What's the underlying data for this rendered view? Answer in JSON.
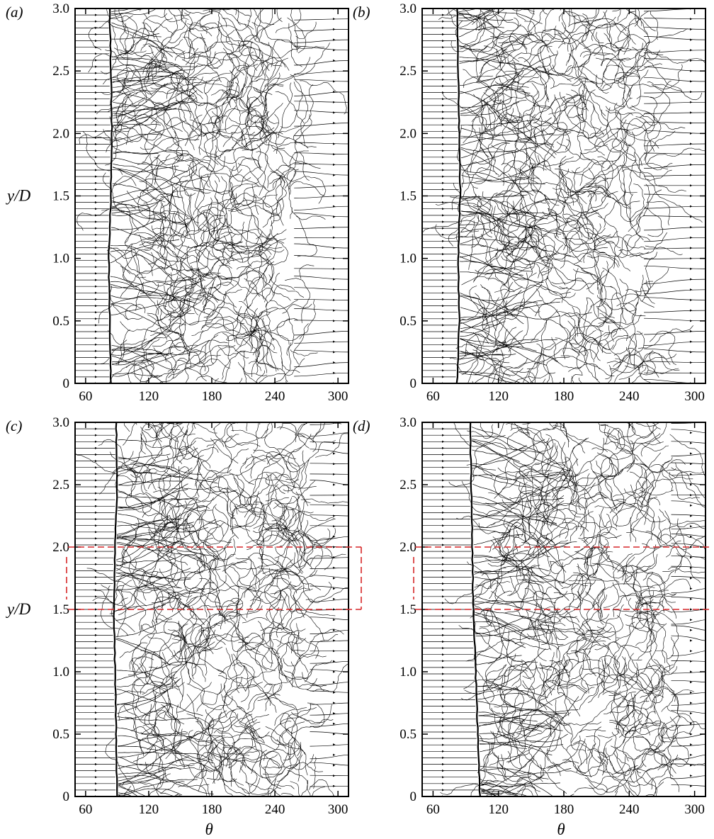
{
  "figure": {
    "axes": {
      "xlabel": "θ",
      "ylabel": "y/D",
      "x_ticks": [
        "60",
        "120",
        "180",
        "240",
        "300"
      ],
      "y_ticks": [
        "0",
        "0.5",
        "1.0",
        "1.5",
        "2.0",
        "2.5",
        "3.0"
      ]
    },
    "line_color": "#000000",
    "highlight_color": "#d62728"
  },
  "chart_data": [
    {
      "type": "scatter",
      "label": "(a)",
      "xlabel": "",
      "ylabel": "y/D",
      "xlim": [
        50,
        310
      ],
      "ylim": [
        0,
        3.0
      ],
      "x_ticks": [
        60,
        120,
        180,
        240,
        300
      ],
      "y_ticks": [
        0,
        0.5,
        1.0,
        1.5,
        2.0,
        2.5,
        3.0
      ],
      "separation_line": [
        [
          0,
          84
        ],
        [
          0.5,
          83
        ],
        [
          1.0,
          82
        ],
        [
          1.5,
          84
        ],
        [
          2.0,
          85
        ],
        [
          2.5,
          84
        ],
        [
          3.0,
          83
        ]
      ],
      "turbulent_region": [
        95,
        265
      ],
      "grid": false,
      "highlight_band": null
    },
    {
      "type": "scatter",
      "label": "(b)",
      "xlabel": "",
      "ylabel": "",
      "xlim": [
        50,
        310
      ],
      "ylim": [
        0,
        3.0
      ],
      "x_ticks": [
        60,
        120,
        180,
        240,
        300
      ],
      "y_ticks": [
        0,
        0.5,
        1.0,
        1.5,
        2.0,
        2.5,
        3.0
      ],
      "separation_line": [
        [
          0,
          82
        ],
        [
          0.5,
          84
        ],
        [
          1.0,
          83
        ],
        [
          1.5,
          85
        ],
        [
          2.0,
          84
        ],
        [
          2.5,
          83
        ],
        [
          3.0,
          82
        ]
      ],
      "turbulent_region": [
        95,
        260
      ],
      "grid": false,
      "highlight_band": null
    },
    {
      "type": "scatter",
      "label": "(c)",
      "xlabel": "θ",
      "ylabel": "y/D",
      "xlim": [
        50,
        310
      ],
      "ylim": [
        0,
        3.0
      ],
      "x_ticks": [
        60,
        120,
        180,
        240,
        300
      ],
      "y_ticks": [
        0,
        0.5,
        1.0,
        1.5,
        2.0,
        2.5,
        3.0
      ],
      "separation_line": [
        [
          0,
          90
        ],
        [
          0.5,
          89
        ],
        [
          1.0,
          88
        ],
        [
          1.5,
          87
        ],
        [
          2.0,
          88
        ],
        [
          2.5,
          90
        ],
        [
          3.0,
          89
        ]
      ],
      "turbulent_region": [
        100,
        280
      ],
      "grid": false,
      "highlight_band": [
        1.5,
        2.0
      ]
    },
    {
      "type": "scatter",
      "label": "(d)",
      "xlabel": "θ",
      "ylabel": "",
      "xlim": [
        50,
        310
      ],
      "ylim": [
        0,
        3.0
      ],
      "x_ticks": [
        60,
        120,
        180,
        240,
        300
      ],
      "y_ticks": [
        0,
        0.5,
        1.0,
        1.5,
        2.0,
        2.5,
        3.0
      ],
      "separation_line": [
        [
          0,
          103
        ],
        [
          0.5,
          101
        ],
        [
          1.0,
          99
        ],
        [
          1.5,
          97
        ],
        [
          2.0,
          96
        ],
        [
          2.5,
          95
        ],
        [
          3.0,
          94
        ]
      ],
      "turbulent_region": [
        110,
        285
      ],
      "grid": false,
      "highlight_band": [
        1.5,
        2.0
      ]
    }
  ]
}
